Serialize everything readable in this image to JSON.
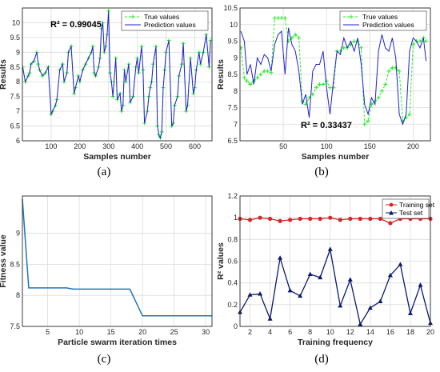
{
  "labels": {
    "a": "(a)",
    "b": "(b)",
    "c": "(c)",
    "d": "(d)"
  },
  "colors": {
    "true": "#22ee22",
    "pred": "#2222cc",
    "fitness": "#1f77b4",
    "train": "#d62728",
    "test": "#0a1a6e",
    "grid": "#dcdcdc"
  },
  "chart_data": [
    {
      "id": "a",
      "type": "line",
      "xlabel": "Samples number",
      "ylabel": "Results",
      "xlim": [
        0,
        660
      ],
      "ylim": [
        6,
        10.5
      ],
      "xticks": [
        100,
        200,
        300,
        400,
        500,
        600
      ],
      "yticks": [
        6,
        6.5,
        7,
        7.5,
        8,
        8.5,
        9,
        9.5,
        10
      ],
      "grid": true,
      "legend_position": "top-right",
      "annotation": "R² = 0.99045",
      "series": [
        {
          "name": "True values",
          "style": "green-dashed-plus"
        },
        {
          "name": "Prediction values",
          "style": "blue-solid"
        }
      ],
      "x": [
        1,
        10,
        20,
        25,
        30,
        40,
        50,
        55,
        60,
        70,
        80,
        90,
        100,
        105,
        115,
        120,
        130,
        140,
        145,
        155,
        160,
        170,
        180,
        185,
        195,
        200,
        210,
        220,
        230,
        240,
        245,
        250,
        255,
        265,
        270,
        275,
        280,
        285,
        290,
        295,
        300,
        305,
        310,
        315,
        325,
        330,
        340,
        345,
        350,
        355,
        360,
        370,
        375,
        385,
        395,
        400,
        405,
        415,
        420,
        425,
        435,
        440,
        445,
        450,
        455,
        465,
        470,
        475,
        480,
        485,
        490,
        495,
        500,
        510,
        520,
        525,
        530,
        540,
        545,
        555,
        560,
        570,
        575,
        585,
        595,
        600,
        605,
        615,
        620,
        630,
        640,
        650,
        655
      ],
      "y_true": [
        8.5,
        8.0,
        8.2,
        8.3,
        8.6,
        8.7,
        9.0,
        8.6,
        8.4,
        8.2,
        8.3,
        8.5,
        6.9,
        7.0,
        7.2,
        7.4,
        8.4,
        8.6,
        8.0,
        8.3,
        9.0,
        9.2,
        7.6,
        7.8,
        8.2,
        8.0,
        8.4,
        8.6,
        8.8,
        9.0,
        9.2,
        8.3,
        8.2,
        8.5,
        8.8,
        9.8,
        10.0,
        9.0,
        9.2,
        9.6,
        10.4,
        8.3,
        8.0,
        7.5,
        8.8,
        7.4,
        7.6,
        7.0,
        7.2,
        8.4,
        8.0,
        8.6,
        7.3,
        7.5,
        8.5,
        8.8,
        8.3,
        9.2,
        8.4,
        6.6,
        7.0,
        7.5,
        7.8,
        8.0,
        8.6,
        9.2,
        6.5,
        6.2,
        6.1,
        6.3,
        7.8,
        8.4,
        9.0,
        9.4,
        6.5,
        6.6,
        7.2,
        7.5,
        8.2,
        8.6,
        9.3,
        7.0,
        7.2,
        8.8,
        7.6,
        7.8,
        8.4,
        9.0,
        8.6,
        9.0,
        9.6,
        8.5,
        9.4
      ],
      "y_pred": [
        8.5,
        8.0,
        8.2,
        8.3,
        8.6,
        8.7,
        9.0,
        8.6,
        8.4,
        8.2,
        8.3,
        8.5,
        6.9,
        7.0,
        7.2,
        7.4,
        8.4,
        8.6,
        8.0,
        8.3,
        9.0,
        9.2,
        7.6,
        7.8,
        8.2,
        8.0,
        8.4,
        8.6,
        8.8,
        9.0,
        9.2,
        8.3,
        8.2,
        8.5,
        8.8,
        9.8,
        10.0,
        9.0,
        9.2,
        9.6,
        10.4,
        8.3,
        8.0,
        7.5,
        8.8,
        7.4,
        7.6,
        7.0,
        7.2,
        8.4,
        8.0,
        8.6,
        7.3,
        7.5,
        8.5,
        8.8,
        8.3,
        9.2,
        8.4,
        6.6,
        7.0,
        7.5,
        7.8,
        8.0,
        8.6,
        9.2,
        6.5,
        6.2,
        6.1,
        6.3,
        7.8,
        8.4,
        9.0,
        9.4,
        6.5,
        6.6,
        7.2,
        7.5,
        8.2,
        8.6,
        9.3,
        7.0,
        7.2,
        8.8,
        7.6,
        7.8,
        8.4,
        9.0,
        8.6,
        9.0,
        9.6,
        8.5,
        9.4
      ]
    },
    {
      "id": "b",
      "type": "line",
      "xlabel": "Samples number",
      "ylabel": "Results",
      "xlim": [
        0,
        220
      ],
      "ylim": [
        6.5,
        10.5
      ],
      "xticks": [
        50,
        100,
        150,
        200
      ],
      "yticks": [
        6.5,
        7,
        7.5,
        8,
        8.5,
        9,
        9.5,
        10,
        10.5
      ],
      "grid": true,
      "legend_position": "top-right",
      "annotation": "R² = 0.33437",
      "series": [
        {
          "name": "True values",
          "style": "green-dashed-plus"
        },
        {
          "name": "Prediction values",
          "style": "blue-solid"
        }
      ],
      "x": [
        1,
        5,
        8,
        12,
        16,
        20,
        24,
        28,
        32,
        36,
        40,
        44,
        48,
        52,
        56,
        60,
        64,
        68,
        72,
        76,
        80,
        84,
        88,
        92,
        96,
        100,
        104,
        108,
        112,
        116,
        120,
        124,
        128,
        132,
        136,
        140,
        144,
        148,
        152,
        156,
        160,
        164,
        168,
        172,
        176,
        180,
        184,
        188,
        192,
        196,
        200,
        204,
        208,
        212,
        215
      ],
      "y_true": [
        9.3,
        8.4,
        8.3,
        8.2,
        8.3,
        8.4,
        8.5,
        8.6,
        8.6,
        8.55,
        10.2,
        10.2,
        10.2,
        10.2,
        9.5,
        9.6,
        9.7,
        9.6,
        7.7,
        7.6,
        7.8,
        7.9,
        8.1,
        8.2,
        8.2,
        8.3,
        8.1,
        8.1,
        9.2,
        9.2,
        9.3,
        9.3,
        9.4,
        9.5,
        9.5,
        9.3,
        7.0,
        7.1,
        7.6,
        7.7,
        7.8,
        8.0,
        8.2,
        8.6,
        8.7,
        8.7,
        8.6,
        7.1,
        7.2,
        7.3,
        9.4,
        9.5,
        9.5,
        9.6,
        9.5
      ],
      "y_pred": [
        9.8,
        9.5,
        8.5,
        8.8,
        8.2,
        9.0,
        8.8,
        9.1,
        9.0,
        8.6,
        9.4,
        9.7,
        9.8,
        8.5,
        9.9,
        9.4,
        9.2,
        8.6,
        7.6,
        7.9,
        7.2,
        8.6,
        8.8,
        8.8,
        9.2,
        8.1,
        7.3,
        8.3,
        9.2,
        9.1,
        9.6,
        9.3,
        9.5,
        9.2,
        9.6,
        8.8,
        7.6,
        7.3,
        7.8,
        7.6,
        9.2,
        9.7,
        9.3,
        9.2,
        9.6,
        9.0,
        7.3,
        7.0,
        7.3,
        9.2,
        9.6,
        9.5,
        9.3,
        9.6,
        8.9
      ]
    },
    {
      "id": "c",
      "type": "line",
      "xlabel": "Particle swarm iteration times",
      "ylabel": "Fitness value",
      "xlim": [
        1,
        31
      ],
      "ylim": [
        7.5,
        9.6
      ],
      "xticks": [
        5,
        10,
        15,
        20,
        25,
        30
      ],
      "yticks": [
        7.5,
        8,
        8.5,
        9
      ],
      "grid": true,
      "x": [
        1,
        2,
        3,
        8,
        9,
        18,
        20,
        31
      ],
      "y": [
        9.55,
        8.12,
        8.12,
        8.12,
        8.1,
        8.1,
        7.67,
        7.67
      ]
    },
    {
      "id": "d",
      "type": "line",
      "xlabel": "Training frequency",
      "ylabel": "R² values",
      "xlim": [
        1,
        20
      ],
      "ylim": [
        0,
        1.2
      ],
      "xticks": [
        2,
        4,
        6,
        8,
        10,
        12,
        14,
        16,
        18,
        20
      ],
      "yticks": [
        0,
        0.2,
        0.4,
        0.6,
        0.8,
        1,
        1.2
      ],
      "grid": true,
      "legend_position": "top-right",
      "categories": [
        1,
        2,
        3,
        4,
        5,
        6,
        7,
        8,
        9,
        10,
        11,
        12,
        13,
        14,
        15,
        16,
        17,
        18,
        19,
        20
      ],
      "series": [
        {
          "name": "Training set",
          "values": [
            0.99,
            0.98,
            1.0,
            0.99,
            0.97,
            0.98,
            0.99,
            0.99,
            0.99,
            1.0,
            0.98,
            0.99,
            0.99,
            0.99,
            0.99,
            0.95,
            0.99,
            0.99,
            0.99,
            0.99
          ]
        },
        {
          "name": "Test set",
          "values": [
            0.13,
            0.29,
            0.3,
            0.07,
            0.63,
            0.33,
            0.28,
            0.48,
            0.45,
            0.71,
            0.19,
            0.43,
            0.02,
            0.17,
            0.23,
            0.47,
            0.57,
            0.12,
            0.38,
            0.03
          ]
        }
      ]
    }
  ]
}
